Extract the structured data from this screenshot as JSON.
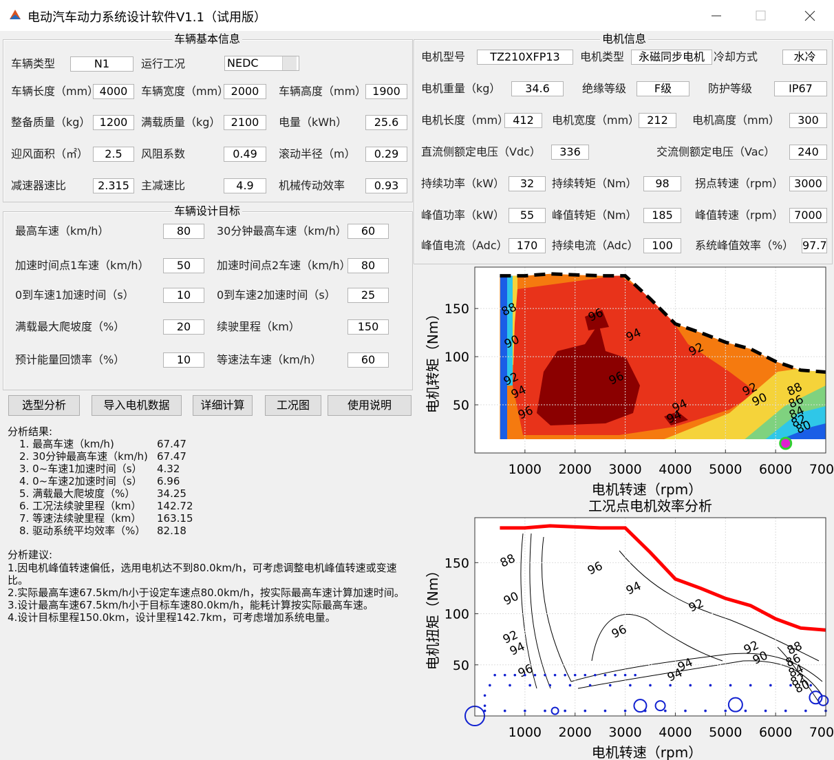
{
  "window_title": "电动汽车动力系统设计软件V1.1（试用版）",
  "vehicle_info": {
    "title": "车辆基本信息",
    "type": {
      "label": "车辆类型",
      "value": "N1"
    },
    "condition": {
      "label": "运行工况",
      "value": "NEDC"
    },
    "fields": [
      {
        "label": "车辆长度（mm）",
        "value": 4000
      },
      {
        "label": "车辆宽度（mm）",
        "value": 2000
      },
      {
        "label": "车辆高度（mm）",
        "value": 1900
      },
      {
        "label": "整备质量（kg）",
        "value": 1200
      },
      {
        "label": "满载质量（kg）",
        "value": 2100
      },
      {
        "label": "电量（kWh）",
        "value": 25.6
      },
      {
        "label": "迎风面积（㎡）",
        "value": 2.5
      },
      {
        "label": "风阻系数",
        "value": 0.49
      },
      {
        "label": "滚动半径（m）",
        "value": 0.29
      },
      {
        "label": "减速器速比",
        "value": 2.315
      },
      {
        "label": "主减速比",
        "value": 4.9
      },
      {
        "label": "机械传动效率",
        "value": 0.93
      }
    ]
  },
  "design_targets": {
    "title": "车辆设计目标",
    "fields": [
      {
        "label": "最高车速（km/h）",
        "value": 80
      },
      {
        "label": "30分钟最高车速（km/h）",
        "value": 60
      },
      {
        "label": "加速时间点1车速（km/h）",
        "value": 50
      },
      {
        "label": "加速时间点2车速（km/h）",
        "value": 80
      },
      {
        "label": "0到车速1加速时间（s）",
        "value": 10
      },
      {
        "label": "0到车速2加速时间（s）",
        "value": 25
      },
      {
        "label": "满载最大爬坡度（%）",
        "value": 20
      },
      {
        "label": "续驶里程（km）",
        "value": 150
      },
      {
        "label": "预计能量回馈率（%）",
        "value": 10
      },
      {
        "label": "等速法车速（km/h）",
        "value": 60
      }
    ]
  },
  "buttons": [
    "选型分析",
    "导入电机数据",
    "详细计算",
    "工况图",
    "使用说明"
  ],
  "results": {
    "title": "分析结果:",
    "items": [
      {
        "label": "1.  最高车速（km/h)",
        "value": 67.47
      },
      {
        "label": "2.  30分钟最高车速（km/h)",
        "value": 67.47
      },
      {
        "label": "3.  0~车速1加速时间（s）",
        "value": 4.32
      },
      {
        "label": "4.  0~车速2加速时间（s）",
        "value": 6.96
      },
      {
        "label": "5.  满载最大爬坡度（%）",
        "value": 34.25
      },
      {
        "label": "6.  工况法续驶里程（km）",
        "value": 142.72
      },
      {
        "label": "7.  等速法续驶里程（km）",
        "value": 163.15
      },
      {
        "label": "8.  驱动系统平均效率（%）",
        "value": 82.18
      }
    ]
  },
  "advice": {
    "title": "分析建议:",
    "lines": [
      "1.因电机峰值转速偏低，选用电机达不到80.0km/h，可考虑调整电机峰值转速或变速比。",
      "2.实际最高车速67.5km/h小于设定车速点80.0km/h，按实际最高车速计算加速时间。",
      "3.设计最高车速67.5km/h小于目标车速80.0km/h，能耗计算按实际最高车速。",
      "4.设计目标里程150.0km，设计里程142.7km，可考虑增加系统电量。"
    ]
  },
  "motor_info": {
    "title": "电机信息",
    "fields": [
      {
        "label": "电机型号",
        "value": "TZ210XFP13"
      },
      {
        "label": "电机类型",
        "value": "永磁同步电机"
      },
      {
        "label": "冷却方式",
        "value": "水冷"
      },
      {
        "label": "电机重量（kg）",
        "value": 34.6
      },
      {
        "label": "绝缘等级",
        "value": "F级"
      },
      {
        "label": "防护等级",
        "value": "IP67"
      },
      {
        "label": "电机长度（mm）",
        "value": 412
      },
      {
        "label": "电机宽度（mm）",
        "value": 212
      },
      {
        "label": "电机高度（mm）",
        "value": 300
      },
      {
        "label": "直流侧额定电压（Vdc）",
        "value": 336
      },
      {
        "label": "交流侧额定电压（Vac）",
        "value": 240
      },
      {
        "label": "持续功率（kW）",
        "value": 32
      },
      {
        "label": "持续转矩（Nm）",
        "value": 98
      },
      {
        "label": "拐点转速（rpm）",
        "value": 3000
      },
      {
        "label": "峰值功率（kW）",
        "value": 55
      },
      {
        "label": "峰值转矩（Nm）",
        "value": 185
      },
      {
        "label": "峰值转速（rpm）",
        "value": 7000
      },
      {
        "label": "峰值电流（Adc）",
        "value": 170
      },
      {
        "label": "持续电流（Adc）",
        "value": 100
      },
      {
        "label": "系统峰值效率（%）",
        "value": 97.7
      }
    ]
  },
  "chart_data": [
    {
      "type": "contourf",
      "xlabel": "电机转速（rpm）",
      "ylabel": "电机转矩（Nm）",
      "xlim": [
        0,
        7000
      ],
      "ylim": [
        0,
        193
      ],
      "xticks": [
        1000,
        2000,
        3000,
        4000,
        5000,
        6000,
        7000
      ],
      "yticks": [
        50,
        100,
        150
      ],
      "grid": true,
      "torque_curve": {
        "color": "#000000",
        "dashed": true,
        "x": [
          500,
          1000,
          1500,
          2000,
          2500,
          3000,
          3500,
          4000,
          4500,
          5000,
          5500,
          6000,
          6500,
          7000
        ],
        "y": [
          184,
          184,
          186,
          185,
          184,
          184,
          160,
          134,
          125,
          115,
          108,
          95,
          86,
          84
        ]
      },
      "contour_labels": [
        96,
        94,
        96,
        94,
        94,
        92,
        92,
        90,
        92,
        94,
        96,
        88,
        86,
        84,
        82,
        80,
        88,
        90
      ],
      "peak_point": {
        "x": 6200,
        "y": 10,
        "color": "#e020d0",
        "edge": "#30d030"
      }
    },
    {
      "type": "contour",
      "title": "工况点电机效率分析",
      "xlabel": "电机转速（rpm）",
      "ylabel": "电机扭矩（Nm）",
      "xlim": [
        0,
        7000
      ],
      "ylim": [
        0,
        194
      ],
      "xticks": [
        1000,
        2000,
        3000,
        4000,
        5000,
        6000,
        7000
      ],
      "yticks": [
        50,
        100,
        150
      ],
      "grid": true,
      "torque_curve": {
        "color": "#ff0000",
        "dashed": false,
        "x": [
          500,
          1000,
          1500,
          2000,
          2500,
          3000,
          3500,
          4000,
          4500,
          5000,
          5500,
          6000,
          6500,
          7000
        ],
        "y": [
          184,
          184,
          186,
          185,
          184,
          184,
          160,
          134,
          125,
          115,
          108,
          95,
          86,
          84
        ]
      },
      "contour_labels": [
        96,
        94,
        96,
        94,
        94,
        92,
        92,
        90,
        92,
        94,
        96,
        88,
        86,
        84,
        82,
        80,
        88,
        90
      ],
      "operating_points": {
        "color": "#1020d0",
        "x": [
          400,
          600,
          800,
          1000,
          1200,
          1400,
          1600,
          1800,
          2000,
          2200,
          2400,
          2600,
          2800,
          3000,
          3200,
          300,
          700,
          1100,
          1500,
          1900,
          2300,
          2700,
          3100,
          3500,
          3900,
          4300,
          4700,
          5100,
          5500,
          5900,
          6300,
          6700,
          200,
          600,
          1000,
          1400,
          1800,
          2200,
          2600,
          3000,
          3400,
          3800,
          4200,
          4600,
          5000,
          5400,
          5800,
          6200,
          6600,
          7000,
          200,
          200
        ],
        "y": [
          40,
          40,
          40,
          40,
          40,
          40,
          40,
          40,
          40,
          40,
          40,
          40,
          40,
          40,
          40,
          30,
          30,
          30,
          30,
          30,
          30,
          30,
          30,
          30,
          30,
          30,
          30,
          30,
          30,
          30,
          30,
          30,
          5,
          5,
          5,
          5,
          5,
          5,
          5,
          5,
          5,
          5,
          5,
          5,
          5,
          5,
          5,
          5,
          5,
          5,
          10,
          20
        ]
      },
      "weighted_points": {
        "x": [
          0,
          1600,
          3300,
          3700,
          5200,
          6800,
          6950
        ],
        "y": [
          0,
          5,
          10,
          10,
          11,
          18,
          15
        ],
        "sizes": [
          14,
          5,
          9,
          7,
          10,
          9,
          7
        ]
      }
    }
  ]
}
